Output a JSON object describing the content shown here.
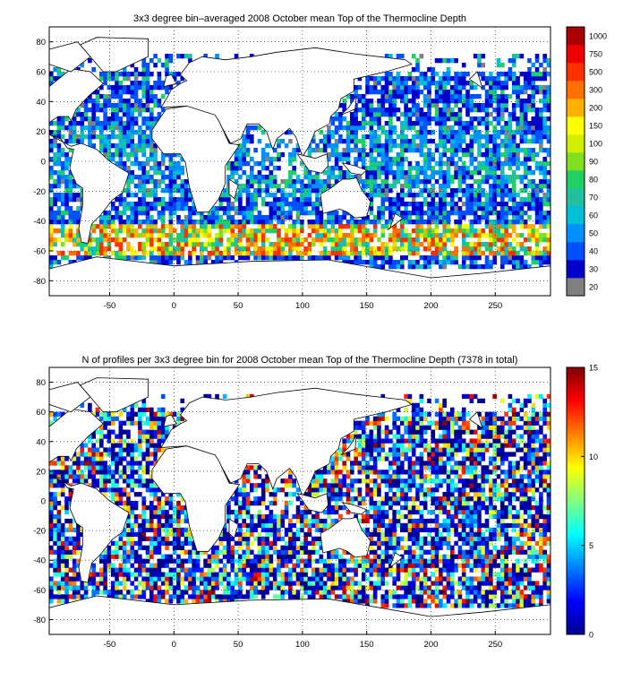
{
  "chart_data": [
    {
      "type": "heatmap",
      "title": "3x3 degree bin–averaged 2008 October mean Top of the Thermocline Depth",
      "xlabel": "",
      "ylabel": "",
      "xlim": [
        -97,
        293
      ],
      "ylim": [
        -90,
        90
      ],
      "xticks": [
        -50,
        0,
        50,
        100,
        150,
        200,
        250
      ],
      "yticks": [
        -80,
        -60,
        -40,
        -20,
        0,
        20,
        40,
        60,
        80
      ],
      "grid": true,
      "colorbar": {
        "scale": "categorical",
        "labels": [
          "20",
          "30",
          "40",
          "50",
          "60",
          "70",
          "80",
          "90",
          "100",
          "150",
          "200",
          "300",
          "500",
          "750",
          "1000"
        ],
        "colors": [
          "#808080",
          "#0000cc",
          "#0050ff",
          "#0090ff",
          "#00c0d8",
          "#20c0a0",
          "#20d060",
          "#80e020",
          "#d0f000",
          "#ffff00",
          "#ffb000",
          "#ff7000",
          "#ff3000",
          "#ee0000",
          "#aa0000"
        ]
      },
      "bin_size_deg": 3
    },
    {
      "type": "heatmap",
      "title": "N of profiles per 3x3 degree bin for 2008 October mean Top of the Thermocline Depth  (7378 in total)",
      "xlabel": "",
      "ylabel": "",
      "xlim": [
        -97,
        293
      ],
      "ylim": [
        -90,
        90
      ],
      "xticks": [
        -50,
        0,
        50,
        100,
        150,
        200,
        250
      ],
      "yticks": [
        -80,
        -60,
        -40,
        -20,
        0,
        20,
        40,
        60,
        80
      ],
      "grid": true,
      "total_profiles": 7378,
      "colorbar": {
        "scale": "linear",
        "range": [
          0,
          15
        ],
        "ticks": [
          0,
          5,
          10,
          15
        ],
        "colormap": "jet"
      },
      "bin_size_deg": 3
    }
  ]
}
